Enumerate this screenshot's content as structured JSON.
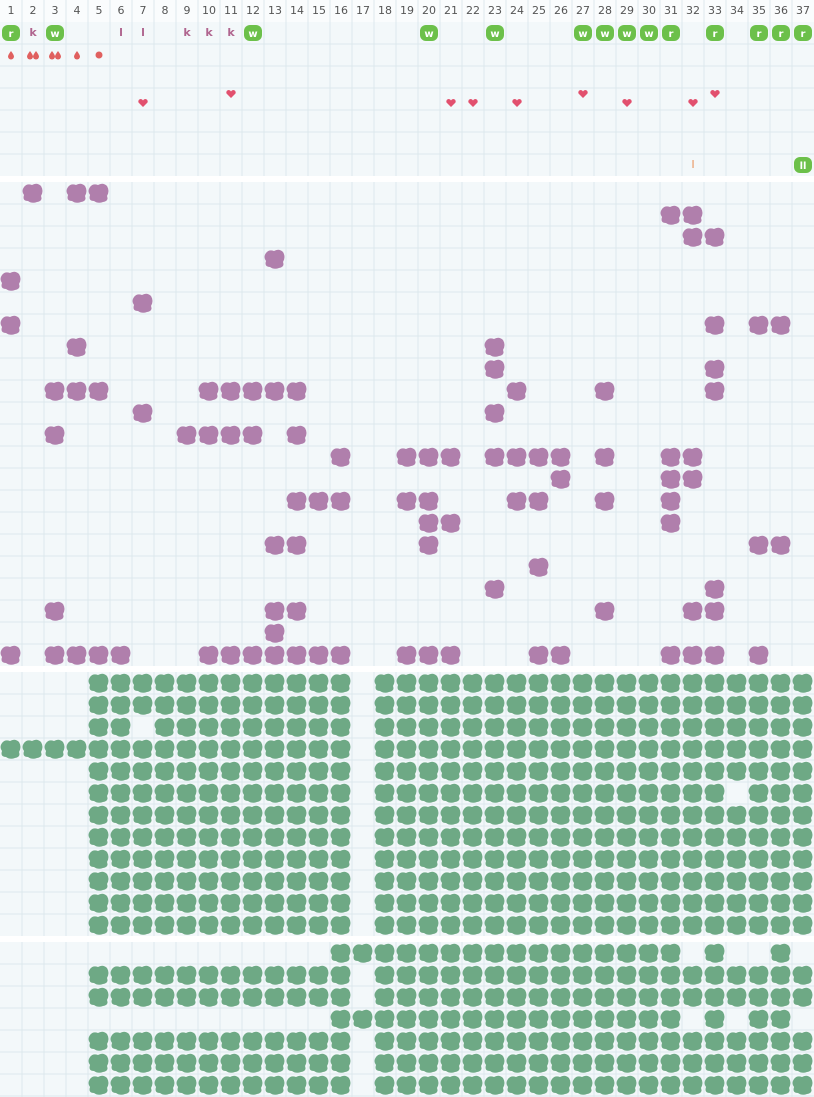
{
  "header": {
    "columns": [
      1,
      2,
      3,
      4,
      5,
      6,
      7,
      8,
      9,
      10,
      11,
      12,
      13,
      14,
      15,
      16,
      17,
      18,
      19,
      20,
      21,
      22,
      23,
      24,
      25,
      26,
      27,
      28,
      29,
      30,
      31,
      32,
      33,
      34,
      35,
      36,
      37
    ]
  },
  "row_markers": {
    "badges": [
      "r",
      null,
      "w",
      null,
      null,
      null,
      null,
      null,
      null,
      null,
      null,
      "w",
      null,
      null,
      null,
      null,
      null,
      null,
      null,
      "w",
      null,
      null,
      "w",
      null,
      null,
      null,
      "w",
      "w",
      "w",
      "w",
      "r",
      null,
      "r",
      null,
      "r",
      "r",
      "r"
    ],
    "letters": [
      null,
      "k",
      null,
      null,
      null,
      "l",
      "l",
      null,
      "k",
      "k",
      "k",
      null,
      null,
      null,
      null,
      null,
      null,
      null,
      null,
      null,
      null,
      null,
      null,
      null,
      null,
      null,
      null,
      null,
      null,
      null,
      null,
      null,
      null,
      null,
      null,
      null,
      null
    ]
  },
  "bottom_markers": {
    "orange": [
      null,
      null,
      null,
      null,
      null,
      null,
      null,
      null,
      null,
      null,
      null,
      null,
      null,
      null,
      null,
      null,
      null,
      null,
      null,
      null,
      null,
      null,
      null,
      null,
      null,
      null,
      null,
      null,
      null,
      null,
      null,
      "l",
      null,
      null,
      null,
      null,
      null
    ],
    "badges": [
      null,
      null,
      null,
      null,
      null,
      null,
      null,
      null,
      null,
      null,
      null,
      null,
      null,
      null,
      null,
      null,
      null,
      null,
      null,
      null,
      null,
      null,
      null,
      null,
      null,
      null,
      null,
      null,
      null,
      null,
      null,
      null,
      null,
      null,
      null,
      null,
      "ll"
    ]
  }
}
